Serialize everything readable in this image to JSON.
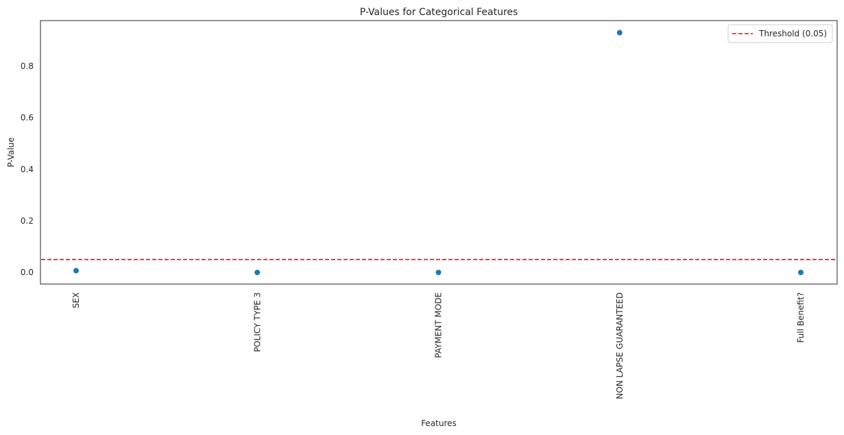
{
  "chart_data": {
    "type": "scatter",
    "title": "P-Values for Categorical Features",
    "xlabel": "Features",
    "ylabel": "P-Value",
    "categories": [
      "SEX",
      "POLICY TYPE 3",
      "PAYMENT MODE",
      "NON LAPSE GUARANTEED",
      "Full Benefit?"
    ],
    "series": [
      {
        "values": [
          0.007,
          0.0,
          0.0,
          0.93,
          0.0
        ],
        "color": "#1f77b4"
      }
    ],
    "threshold": {
      "name": "Threshold (0.05)",
      "value": 0.05,
      "color": "#ff0000",
      "style": "dashed"
    },
    "yticks": [
      0.0,
      0.2,
      0.4,
      0.6,
      0.8
    ],
    "ytick_labels": [
      "0.0",
      "0.2",
      "0.4",
      "0.6",
      "0.8"
    ],
    "ylim": [
      -0.045,
      0.977
    ],
    "grid": false,
    "legend": "top-right"
  }
}
